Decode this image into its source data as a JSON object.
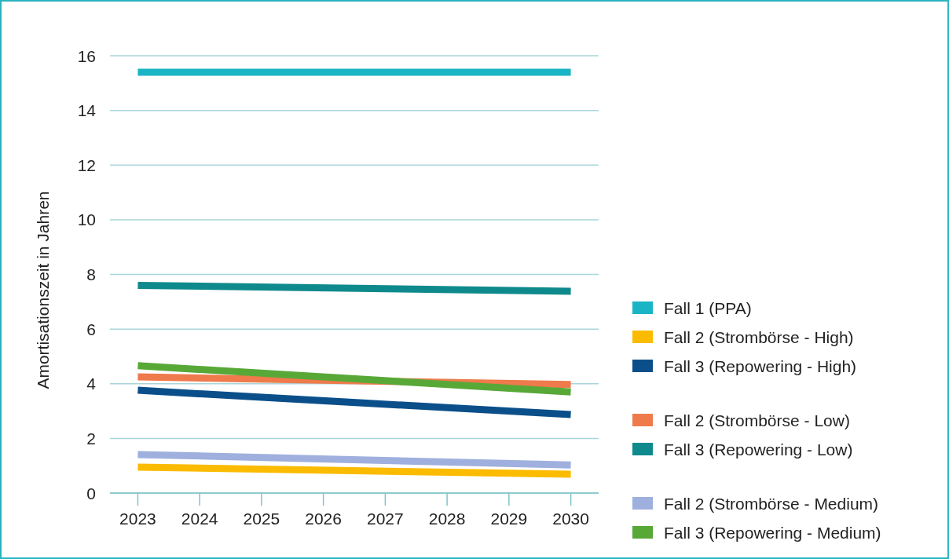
{
  "chart_data": {
    "type": "line",
    "ylabel": "Amortisationszeit in Jahren",
    "x": [
      2023,
      2030
    ],
    "xlim": [
      2022.55,
      2030.45
    ],
    "xticks": [
      2023,
      2024,
      2025,
      2026,
      2027,
      2028,
      2029,
      2030
    ],
    "ylim": [
      0,
      16
    ],
    "yticks": [
      0,
      2,
      4,
      6,
      8,
      10,
      12,
      14,
      16
    ],
    "grid": "y",
    "legend": "right",
    "marker": "none",
    "line_style": "solid",
    "series": [
      {
        "name": "Fall 1 (PPA)",
        "color": "#1ab5c4",
        "values": [
          15.4,
          15.4
        ]
      },
      {
        "name": "Fall 2 (Strombörse - High)",
        "color": "#fbbb00",
        "values": [
          0.95,
          0.69
        ]
      },
      {
        "name": "Fall 3 (Repowering - High)",
        "color": "#0b4f8a",
        "values": [
          3.76,
          2.87
        ]
      },
      {
        "name": "Fall 2 (Strombörse - Low)",
        "color": "#ef7a4c",
        "values": [
          4.25,
          3.97
        ]
      },
      {
        "name": "Fall 3 (Repowering - Low)",
        "color": "#0f8a8c",
        "values": [
          7.6,
          7.38
        ]
      },
      {
        "name": "Fall 2 (Strombörse - Medium)",
        "color": "#9fb0de",
        "values": [
          1.41,
          1.03
        ]
      },
      {
        "name": "Fall 3 (Repowering - Medium)",
        "color": "#58a838",
        "values": [
          4.66,
          3.7
        ]
      }
    ]
  }
}
